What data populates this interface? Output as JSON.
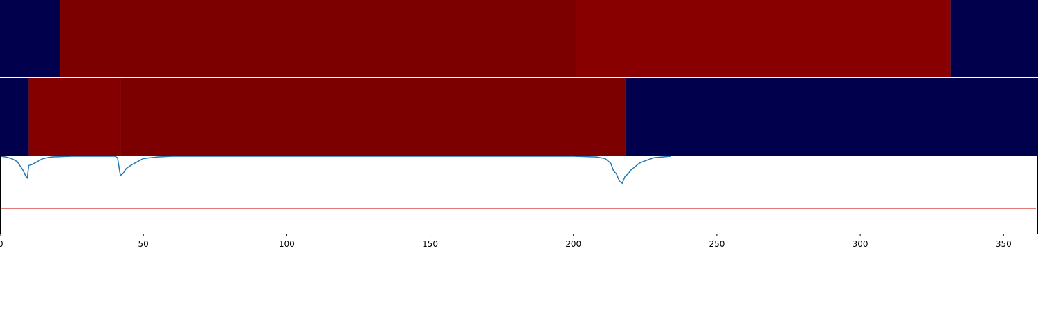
{
  "chart_data": {
    "type": "heatmap",
    "xlim": [
      0,
      362
    ],
    "x_ticks": [
      0,
      50,
      100,
      150,
      200,
      250,
      300,
      350
    ],
    "tracks": [
      {
        "segments": [
          {
            "start": 0,
            "end": 21,
            "color": "#00004c"
          },
          {
            "start": 21,
            "end": 201,
            "color": "#7d0000"
          },
          {
            "start": 201,
            "end": 331.5,
            "color": "#890000"
          },
          {
            "start": 331.5,
            "end": 362,
            "color": "#00004c"
          }
        ]
      },
      {
        "segments": [
          {
            "start": 0,
            "end": 10,
            "color": "#00004c"
          },
          {
            "start": 10,
            "end": 42,
            "color": "#840000"
          },
          {
            "start": 42,
            "end": 218,
            "color": "#7d0000"
          },
          {
            "start": 218,
            "end": 362,
            "color": "#00004c"
          }
        ]
      }
    ],
    "signal": {
      "color": "#1f77b4",
      "ylim": [
        0,
        1
      ],
      "points": [
        [
          0,
          1.0
        ],
        [
          2,
          0.99
        ],
        [
          4,
          0.97
        ],
        [
          6,
          0.93
        ],
        [
          8,
          0.82
        ],
        [
          9,
          0.74
        ],
        [
          9.5,
          0.72
        ],
        [
          10,
          0.88
        ],
        [
          11,
          0.89
        ],
        [
          13,
          0.93
        ],
        [
          15,
          0.97
        ],
        [
          18,
          0.99
        ],
        [
          25,
          1.0
        ],
        [
          40,
          1.0
        ],
        [
          41,
          0.98
        ],
        [
          42,
          0.75
        ],
        [
          43,
          0.78
        ],
        [
          44,
          0.84
        ],
        [
          46,
          0.89
        ],
        [
          48,
          0.93
        ],
        [
          50,
          0.97
        ],
        [
          55,
          0.99
        ],
        [
          60,
          1.0
        ],
        [
          200,
          1.0
        ],
        [
          208,
          0.99
        ],
        [
          211,
          0.97
        ],
        [
          213,
          0.91
        ],
        [
          214,
          0.81
        ],
        [
          215,
          0.77
        ],
        [
          216,
          0.68
        ],
        [
          217,
          0.65
        ],
        [
          218,
          0.74
        ],
        [
          219,
          0.77
        ],
        [
          220,
          0.82
        ],
        [
          221,
          0.85
        ],
        [
          223,
          0.91
        ],
        [
          225,
          0.94
        ],
        [
          228,
          0.98
        ],
        [
          234,
          1.0
        ]
      ],
      "visible_until": 234
    },
    "threshold": {
      "value": 0.32,
      "color": "#d62728"
    },
    "grid": false,
    "legend": "none"
  }
}
